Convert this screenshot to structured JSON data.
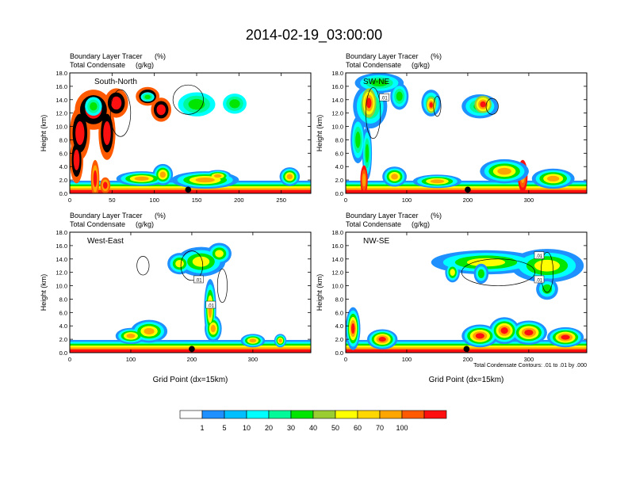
{
  "title": "2014-02-19_03:00:00",
  "chart_data": [
    {
      "type": "heatmap",
      "panel_label": "South-North",
      "title_line1": "Boundary Layer Tracer",
      "title_unit1": "(%)",
      "title_line2": "Total Condensate",
      "title_unit2": "(g/kg)",
      "ylabel": "Height (km)",
      "xlabel": "",
      "xlim": [
        0,
        285
      ],
      "ylim": [
        0,
        18
      ],
      "xticks": [
        0,
        50,
        100,
        150,
        200,
        250
      ],
      "yticks": [
        "0.0",
        "2.0",
        "4.0",
        "6.0",
        "8.0",
        "10.0",
        "12.0",
        "14.0",
        "16.0",
        "18.0"
      ],
      "marker_x": 140,
      "contour_labels": []
    },
    {
      "type": "heatmap",
      "panel_label": "SW-NE",
      "title_line1": "Boundary Layer Tracer",
      "title_unit1": "(%)",
      "title_line2": "Total Condensate",
      "title_unit2": "(g/kg)",
      "ylabel": "Height (km)",
      "xlabel": "",
      "xlim": [
        0,
        395
      ],
      "ylim": [
        0,
        18
      ],
      "xticks": [
        0,
        100,
        200,
        300
      ],
      "yticks": [
        "0.0",
        "2.0",
        "4.0",
        "6.0",
        "8.0",
        "10.0",
        "12.0",
        "14.0",
        "16.0",
        "18.0"
      ],
      "marker_x": 200,
      "contour_labels": [
        {
          "text": ".01",
          "x": 63,
          "y": 14.3
        }
      ]
    },
    {
      "type": "heatmap",
      "panel_label": "West-East",
      "title_line1": "Boundary Layer Tracer",
      "title_unit1": "(%)",
      "title_line2": "Total Condensate",
      "title_unit2": "(g/kg)",
      "ylabel": "Height (km)",
      "xlabel": "Grid Point (dx=15km)",
      "xlim": [
        0,
        395
      ],
      "ylim": [
        0,
        18
      ],
      "xticks": [
        0,
        100,
        200,
        300
      ],
      "yticks": [
        "0.0",
        "2.0",
        "4.0",
        "6.0",
        "8.0",
        "10.0",
        "12.0",
        "14.0",
        "16.0",
        "18.0"
      ],
      "marker_x": 200,
      "contour_labels": [
        {
          "text": ".01",
          "x": 211,
          "y": 10.9
        },
        {
          "text": ".01",
          "x": 231,
          "y": 7.1
        }
      ]
    },
    {
      "type": "heatmap",
      "panel_label": "NW-SE",
      "title_line1": "Boundary Layer Tracer",
      "title_unit1": "(%)",
      "title_line2": "Total Condensate",
      "title_unit2": "(g/kg)",
      "ylabel": "Height (km)",
      "xlabel": "Grid Point (dx=15km)",
      "xlim": [
        0,
        395
      ],
      "ylim": [
        0,
        18
      ],
      "xticks": [
        0,
        100,
        200,
        300
      ],
      "yticks": [
        "0.0",
        "2.0",
        "4.0",
        "6.0",
        "8.0",
        "10.0",
        "12.0",
        "14.0",
        "16.0",
        "18.0"
      ],
      "marker_x": 198,
      "contour_labels": [
        {
          "text": ".01",
          "x": 317,
          "y": 14.5
        },
        {
          "text": ".01",
          "x": 317,
          "y": 10.9
        }
      ],
      "note": "Total Condensate Contours: .01 to .01 by .000"
    }
  ],
  "colorbar": {
    "labels": [
      "1",
      "5",
      "10",
      "20",
      "30",
      "40",
      "50",
      "60",
      "70",
      "100"
    ],
    "colors": [
      "#ffffff",
      "#1e90ff",
      "#00bfff",
      "#00ffff",
      "#00fa9a",
      "#00e600",
      "#9acd32",
      "#ffff00",
      "#ffd700",
      "#ffa500",
      "#ff5a00",
      "#ff1010"
    ]
  }
}
